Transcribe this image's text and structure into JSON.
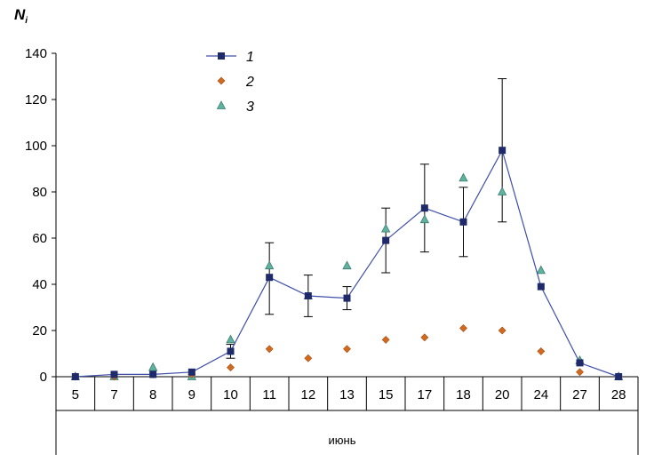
{
  "chart_data": {
    "type": "line",
    "ylabel_main": "N",
    "ylabel_sub": "i",
    "xlabel": "июнь",
    "ylim": [
      0,
      140
    ],
    "yticks": [
      0,
      20,
      40,
      60,
      80,
      100,
      120,
      140
    ],
    "categories": [
      "5",
      "7",
      "8",
      "9",
      "10",
      "11",
      "12",
      "13",
      "15",
      "17",
      "18",
      "20",
      "24",
      "27",
      "28"
    ],
    "grid": false,
    "legend_position": "top-center",
    "series": [
      {
        "name": "1",
        "style": "line-square",
        "color": "#1f2a6b",
        "values": [
          0,
          1,
          1,
          2,
          11,
          43,
          35,
          34,
          59,
          73,
          67,
          98,
          39,
          6,
          0
        ],
        "error_low": [
          0,
          0,
          0,
          0,
          8,
          27,
          26,
          29,
          45,
          54,
          52,
          67,
          39,
          6,
          0
        ],
        "error_high": [
          0,
          0,
          0,
          0,
          14,
          58,
          44,
          39,
          73,
          92,
          82,
          129,
          39,
          6,
          0
        ]
      },
      {
        "name": "2",
        "style": "diamond",
        "color": "#d2691e",
        "values": [
          0,
          0,
          1,
          1,
          4,
          12,
          8,
          12,
          16,
          17,
          21,
          20,
          11,
          2,
          0
        ]
      },
      {
        "name": "3",
        "style": "triangle",
        "color": "#5fb3a0",
        "values": [
          0,
          0,
          4,
          0,
          16,
          48,
          35,
          48,
          64,
          68,
          86,
          80,
          46,
          7,
          0
        ]
      }
    ]
  }
}
